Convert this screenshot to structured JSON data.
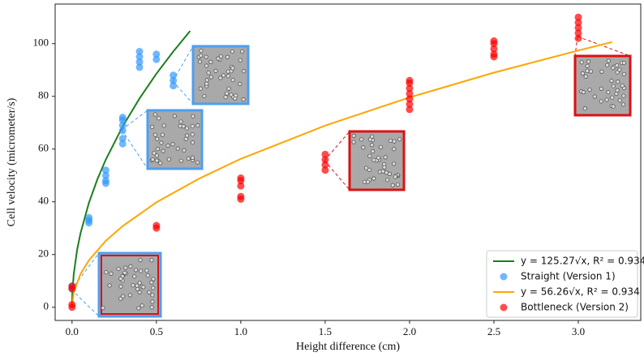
{
  "chart_data": {
    "type": "scatter",
    "x_label": "Height difference (cm)",
    "y_label": "Cell velocity (micrometer/s)",
    "xlim": [
      -0.1,
      3.37
    ],
    "ylim": [
      -5,
      115
    ],
    "xticks": [
      {
        "value": 0,
        "label": "0.0"
      },
      {
        "value": 0.5,
        "label": "0.5"
      },
      {
        "value": 1,
        "label": "1.0"
      },
      {
        "value": 1.5,
        "label": "1.5"
      },
      {
        "value": 2,
        "label": "2.0"
      },
      {
        "value": 2.5,
        "label": "2.5"
      },
      {
        "value": 3,
        "label": "3.0"
      }
    ],
    "yticks": [
      0,
      20,
      40,
      60,
      80,
      100
    ],
    "grid": false,
    "legend": "lower right",
    "series": [
      {
        "name": "y = 125.27√x, R² = 0.934",
        "type": "line",
        "color": "#1a7f1a",
        "x": [
          0,
          0.002,
          0.01,
          0.03,
          0.05,
          0.1,
          0.15,
          0.2,
          0.3,
          0.4,
          0.5,
          0.6,
          0.7
        ],
        "values": [
          0,
          5.6,
          12.5,
          21.7,
          28.0,
          39.6,
          48.5,
          56.0,
          68.6,
          79.2,
          88.6,
          97.0,
          104.8
        ]
      },
      {
        "name": "Straight (Version 1)",
        "type": "scatter",
        "color": "#3399ff",
        "x": [
          0,
          0,
          0.1,
          0.1,
          0.1,
          0.2,
          0.2,
          0.2,
          0.2,
          0.3,
          0.3,
          0.3,
          0.3,
          0.3,
          0.3,
          0.4,
          0.4,
          0.4,
          0.4,
          0.5,
          0.5,
          0.6,
          0.6,
          0.6
        ],
        "values": [
          7,
          8,
          32,
          33,
          34,
          47,
          48,
          50,
          52,
          62,
          64,
          67,
          69,
          71,
          72,
          91,
          93,
          95,
          97,
          94,
          96,
          84,
          86,
          88
        ]
      },
      {
        "name": "y = 56.26√x, R² = 0.934",
        "type": "line",
        "color": "#ffa500",
        "x": [
          0,
          0.01,
          0.05,
          0.1,
          0.2,
          0.3,
          0.5,
          0.75,
          1,
          1.5,
          2,
          2.5,
          3,
          3.2
        ],
        "values": [
          0,
          5.6,
          12.6,
          17.8,
          25.2,
          30.8,
          39.8,
          48.7,
          56.3,
          68.9,
          79.6,
          89.0,
          97.4,
          100.6
        ]
      },
      {
        "name": "Bottleneck (Version 2)",
        "type": "scatter",
        "color": "#ff0000",
        "x": [
          0,
          0,
          0,
          0,
          0.5,
          0.5,
          1,
          1,
          1,
          1,
          1,
          1.5,
          1.5,
          1.5,
          1.5,
          2,
          2,
          2,
          2,
          2,
          2,
          2,
          2.5,
          2.5,
          2.5,
          2.5,
          2.5,
          3,
          3,
          3,
          3,
          3
        ],
        "values": [
          0,
          1,
          7,
          8,
          30,
          31,
          41,
          42,
          46,
          48,
          49,
          52,
          54,
          56,
          58,
          75,
          77,
          79,
          81,
          83,
          85,
          86,
          95,
          96,
          98,
          100,
          101,
          102,
          104,
          106,
          108,
          110
        ]
      }
    ]
  }
}
